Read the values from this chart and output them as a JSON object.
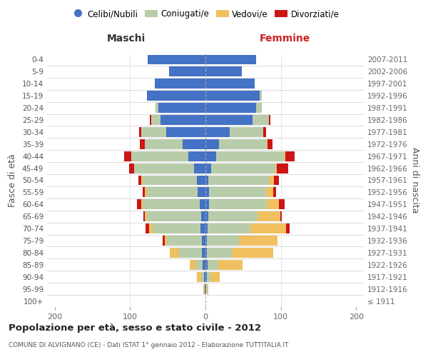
{
  "age_groups": [
    "100+",
    "95-99",
    "90-94",
    "85-89",
    "80-84",
    "75-79",
    "70-74",
    "65-69",
    "60-64",
    "55-59",
    "50-54",
    "45-49",
    "40-44",
    "35-39",
    "30-34",
    "25-29",
    "20-24",
    "15-19",
    "10-14",
    "5-9",
    "0-4"
  ],
  "birth_years": [
    "≤ 1911",
    "1912-1916",
    "1917-1921",
    "1922-1926",
    "1927-1931",
    "1932-1936",
    "1937-1941",
    "1942-1946",
    "1947-1951",
    "1952-1956",
    "1957-1961",
    "1962-1966",
    "1967-1971",
    "1972-1976",
    "1977-1981",
    "1982-1986",
    "1987-1991",
    "1992-1996",
    "1997-2001",
    "2002-2006",
    "2007-2011"
  ],
  "male_celibe": [
    0,
    1,
    2,
    4,
    5,
    5,
    7,
    6,
    8,
    10,
    11,
    15,
    23,
    30,
    52,
    60,
    62,
    78,
    67,
    48,
    77
  ],
  "male_coniugato": [
    0,
    1,
    4,
    9,
    30,
    46,
    63,
    72,
    75,
    68,
    72,
    80,
    75,
    50,
    33,
    12,
    4,
    0,
    0,
    0,
    0
  ],
  "male_vedovo": [
    0,
    1,
    5,
    8,
    12,
    3,
    5,
    2,
    2,
    2,
    2,
    0,
    0,
    0,
    0,
    0,
    0,
    0,
    0,
    0,
    0
  ],
  "male_divorziato": [
    0,
    0,
    0,
    0,
    0,
    3,
    4,
    2,
    6,
    3,
    4,
    6,
    10,
    7,
    3,
    2,
    0,
    0,
    0,
    0,
    0
  ],
  "female_nubile": [
    0,
    1,
    2,
    3,
    2,
    2,
    3,
    4,
    5,
    5,
    4,
    8,
    14,
    18,
    32,
    62,
    67,
    72,
    65,
    48,
    67
  ],
  "female_coniugata": [
    0,
    1,
    5,
    14,
    33,
    42,
    57,
    65,
    76,
    75,
    80,
    85,
    90,
    63,
    45,
    22,
    8,
    3,
    0,
    0,
    0
  ],
  "female_vedova": [
    0,
    2,
    12,
    32,
    55,
    52,
    47,
    30,
    16,
    10,
    7,
    2,
    2,
    1,
    0,
    0,
    0,
    0,
    0,
    0,
    0
  ],
  "female_divorziata": [
    0,
    0,
    0,
    0,
    0,
    0,
    5,
    2,
    8,
    4,
    6,
    15,
    12,
    7,
    3,
    2,
    0,
    0,
    0,
    0,
    0
  ],
  "color_celibe": "#4472C4",
  "color_coniugato": "#B8CCAA",
  "color_vedovo": "#F0C060",
  "color_divorziato": "#CC1515",
  "title": "Popolazione per età, sesso e stato civile - 2012",
  "subtitle": "COMUNE DI ALVIGNANO (CE) - Dati ISTAT 1° gennaio 2012 - Elaborazione TUTTITALIA.IT",
  "legend_labels": [
    "Celibi/Nubili",
    "Coniugati/e",
    "Vedovi/e",
    "Divorziati/e"
  ],
  "xlim": 210,
  "xlabel_left": "Maschi",
  "xlabel_right": "Femmine",
  "ylabel_left": "Fasce di età",
  "ylabel_right": "Anni di nascita"
}
